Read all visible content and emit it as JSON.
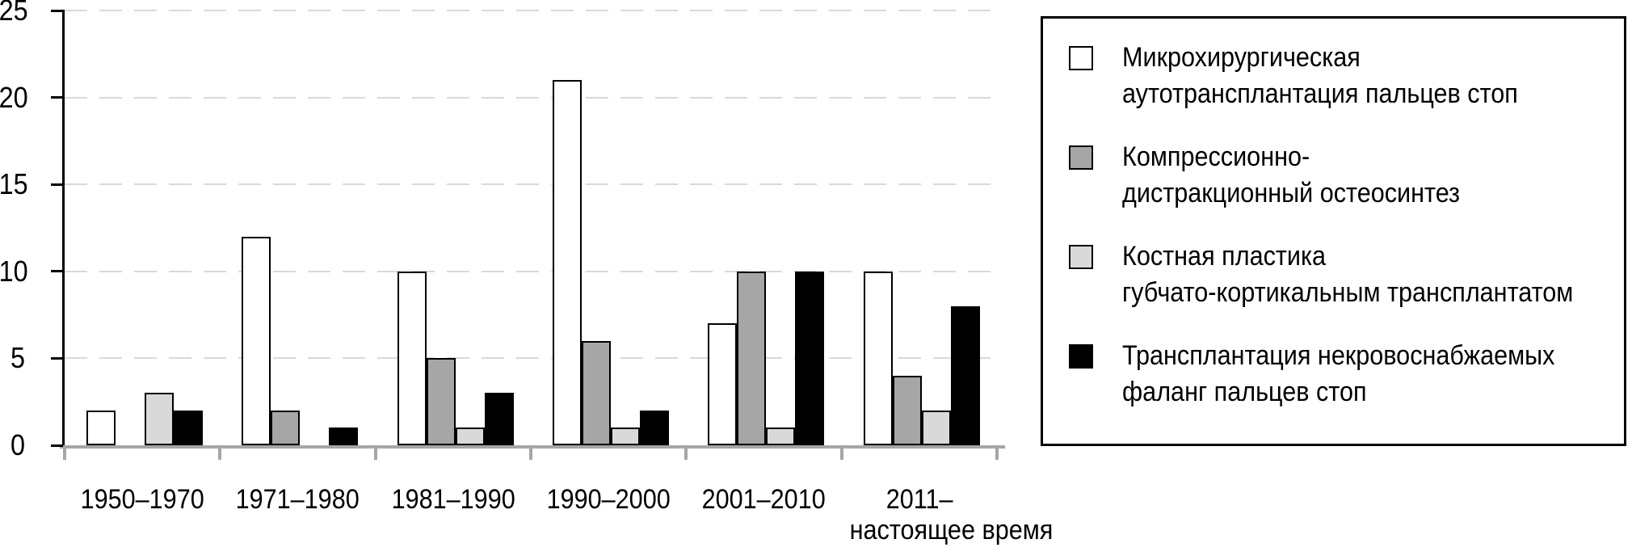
{
  "figure": {
    "background": "#ffffff"
  },
  "chart_data": {
    "type": "bar",
    "categories": [
      "1950–1970",
      "1971–1980",
      "1981–1990",
      "1990–2000",
      "2001–2010",
      "2011–\nнастоящее время"
    ],
    "series": [
      {
        "key": "microsurgical-autotransplantation",
        "name": "Микрохирургическая аутотрансплантация пальцев стоп",
        "color": "#ffffff",
        "values": [
          2,
          12,
          10,
          21,
          7,
          10
        ]
      },
      {
        "key": "compression-distraction-osteosynthesis",
        "name": "Компрессионно-дистракционный остеосинтез",
        "color": "#a6a6a6",
        "values": [
          0,
          2,
          5,
          6,
          10,
          4
        ]
      },
      {
        "key": "bone-grafting-cancellous-cortical",
        "name": "Костная пластика губчато-кортикальным трансплантатом",
        "color": "#d9d9d9",
        "values": [
          3,
          0,
          1,
          1,
          1,
          2
        ]
      },
      {
        "key": "non-vascularized-phalanx-transplantation",
        "name": "Трансплантация некровоснабжаемых фаланг пальцев стоп",
        "color": "#000000",
        "values": [
          2,
          1,
          3,
          2,
          10,
          8
        ]
      }
    ],
    "ylim": [
      0,
      25
    ],
    "y_ticks": [
      25,
      20,
      15,
      10,
      5,
      0
    ],
    "xlabel": "",
    "ylabel": "",
    "grid": "horizontal-dashed",
    "legend_position": "right"
  },
  "legend": {
    "items": [
      {
        "line1": "Микрохирургическая",
        "line2": "аутотрансплантация пальцев стоп"
      },
      {
        "line1": "Компрессионно-",
        "line2": "дистракционный остеосинтез"
      },
      {
        "line1": "Костная пластика",
        "line2": "губчато-кортикальным трансплантатом"
      },
      {
        "line1": "Трансплантация некровоснабжаемых",
        "line2": "фаланг пальцев стоп"
      }
    ]
  },
  "colors": {
    "grid": "#d9d9d9",
    "axis_baseline": "#a6a6a6",
    "y_axis": "#000000",
    "text": "#000000"
  }
}
